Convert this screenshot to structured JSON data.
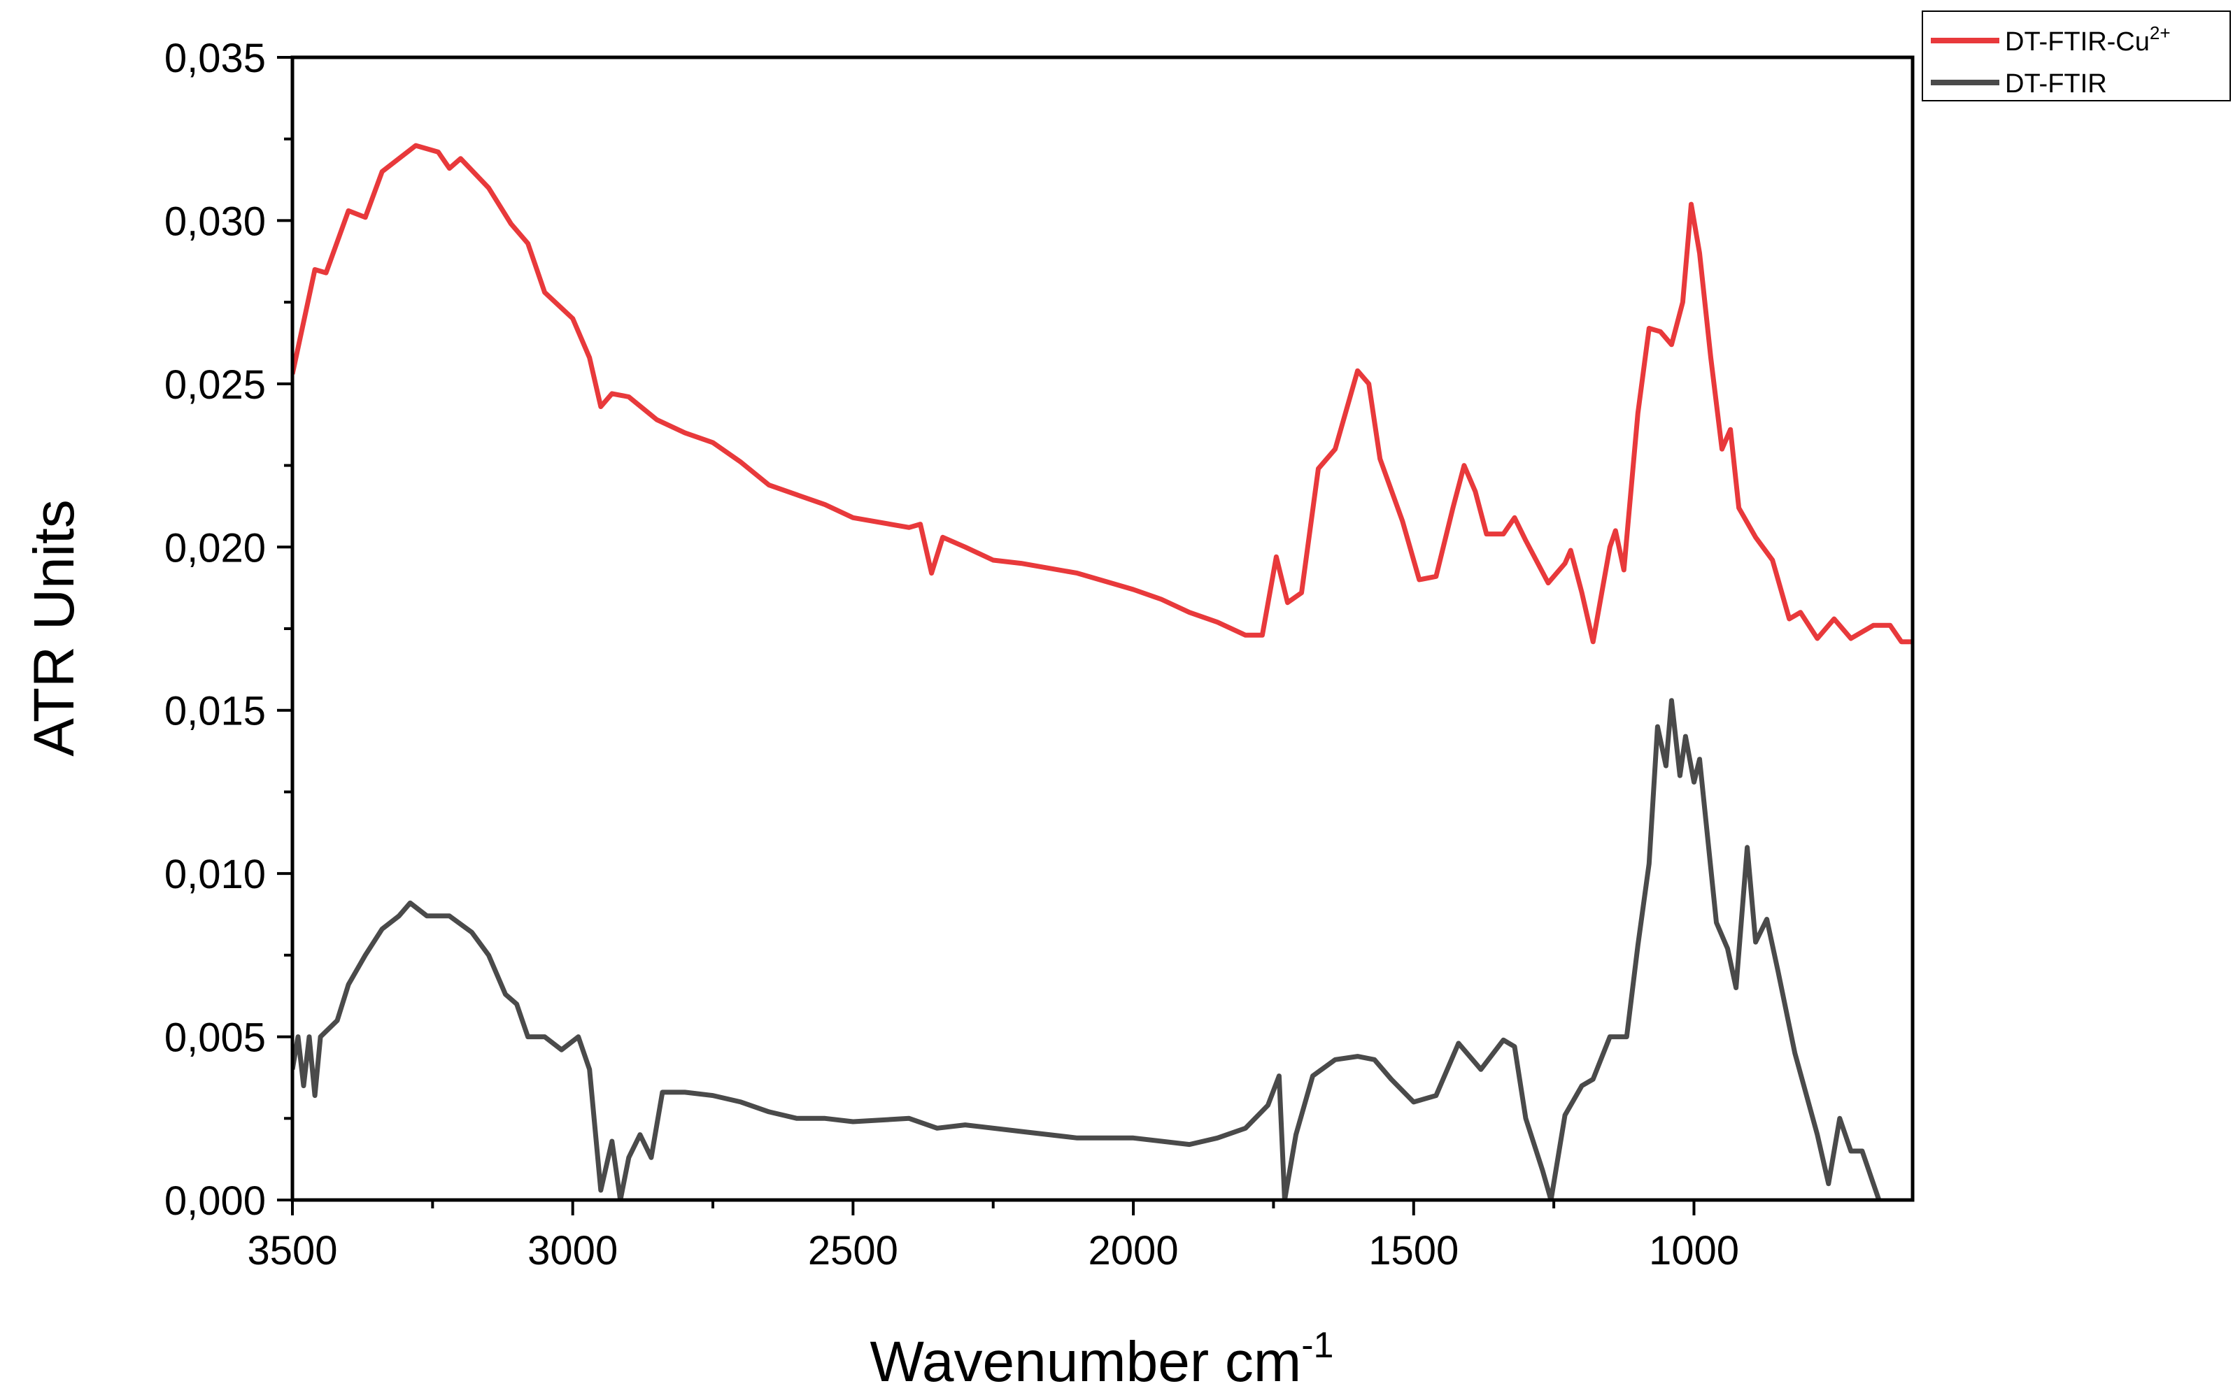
{
  "chart_data": {
    "type": "line",
    "x_label": "Wavenumber cm",
    "x_label_sup": "-1",
    "y_label": "ATR Units",
    "xlim": [
      3500,
      610
    ],
    "xticks": [
      3500,
      3000,
      2500,
      2000,
      1500,
      1000
    ],
    "ylim": [
      0,
      0.035
    ],
    "yticks": [
      {
        "value": 0,
        "label": "0,000"
      },
      {
        "value": 0.005,
        "label": "0,005"
      },
      {
        "value": 0.01,
        "label": "0,010"
      },
      {
        "value": 0.015,
        "label": "0,015"
      },
      {
        "value": 0.02,
        "label": "0,020"
      },
      {
        "value": 0.025,
        "label": "0,025"
      },
      {
        "value": 0.03,
        "label": "0,030"
      },
      {
        "value": 0.035,
        "label": "0,035"
      }
    ],
    "legend": "upper right",
    "series": [
      {
        "name": "DT-FTIR-Cu",
        "name_sup": "2+",
        "color": "#e8393b",
        "x": [
          3500,
          3460,
          3440,
          3400,
          3370,
          3340,
          3280,
          3240,
          3220,
          3200,
          3150,
          3110,
          3080,
          3050,
          3000,
          2970,
          2950,
          2930,
          2900,
          2850,
          2800,
          2750,
          2700,
          2650,
          2600,
          2550,
          2500,
          2400,
          2380,
          2360,
          2340,
          2300,
          2250,
          2200,
          2100,
          2000,
          1950,
          1900,
          1850,
          1800,
          1770,
          1745,
          1725,
          1700,
          1670,
          1640,
          1600,
          1580,
          1560,
          1520,
          1490,
          1460,
          1430,
          1410,
          1390,
          1370,
          1340,
          1320,
          1300,
          1260,
          1230,
          1220,
          1200,
          1180,
          1150,
          1140,
          1125,
          1100,
          1080,
          1060,
          1040,
          1020,
          1005,
          990,
          970,
          950,
          935,
          920,
          890,
          860,
          830,
          810,
          780,
          750,
          720,
          680,
          650,
          630,
          610
        ],
        "values": [
          0.0253,
          0.0285,
          0.0284,
          0.0303,
          0.0301,
          0.0315,
          0.0323,
          0.0321,
          0.0316,
          0.0319,
          0.031,
          0.0299,
          0.0293,
          0.0278,
          0.027,
          0.0258,
          0.0243,
          0.0247,
          0.0246,
          0.0239,
          0.0235,
          0.0232,
          0.0226,
          0.0219,
          0.0216,
          0.0213,
          0.0209,
          0.0206,
          0.0207,
          0.0192,
          0.0203,
          0.02,
          0.0196,
          0.0195,
          0.0192,
          0.0187,
          0.0184,
          0.018,
          0.0177,
          0.0173,
          0.0173,
          0.0197,
          0.0183,
          0.0186,
          0.0224,
          0.023,
          0.0254,
          0.025,
          0.0227,
          0.0208,
          0.019,
          0.0191,
          0.0212,
          0.0225,
          0.0217,
          0.0204,
          0.0204,
          0.0209,
          0.0202,
          0.0189,
          0.0195,
          0.0199,
          0.0186,
          0.0171,
          0.02,
          0.0205,
          0.0193,
          0.0241,
          0.0267,
          0.0266,
          0.0262,
          0.0275,
          0.0305,
          0.029,
          0.0258,
          0.023,
          0.0236,
          0.0212,
          0.0203,
          0.0196,
          0.0178,
          0.018,
          0.0172,
          0.0178,
          0.0172,
          0.0176,
          0.0176,
          0.0171,
          0.0171
        ]
      },
      {
        "name": "DT-FTIR",
        "color": "#4a4a4a",
        "x": [
          3500,
          3490,
          3480,
          3470,
          3460,
          3450,
          3420,
          3400,
          3370,
          3340,
          3310,
          3290,
          3260,
          3220,
          3180,
          3150,
          3120,
          3100,
          3080,
          3050,
          3020,
          2990,
          2970,
          2950,
          2930,
          2915,
          2900,
          2880,
          2860,
          2840,
          2800,
          2750,
          2700,
          2650,
          2600,
          2550,
          2500,
          2400,
          2350,
          2300,
          2200,
          2100,
          2000,
          1900,
          1850,
          1800,
          1760,
          1740,
          1730,
          1710,
          1680,
          1640,
          1600,
          1570,
          1540,
          1500,
          1460,
          1420,
          1380,
          1340,
          1320,
          1300,
          1270,
          1255,
          1230,
          1200,
          1180,
          1150,
          1120,
          1100,
          1080,
          1065,
          1050,
          1040,
          1025,
          1015,
          1000,
          990,
          960,
          940,
          925,
          905,
          890,
          870,
          850,
          820,
          780,
          760,
          740,
          720,
          700,
          680,
          670
        ],
        "values": [
          0.004,
          0.005,
          0.0035,
          0.005,
          0.0032,
          0.005,
          0.0055,
          0.0066,
          0.0075,
          0.0083,
          0.0087,
          0.0091,
          0.0087,
          0.0087,
          0.0082,
          0.0075,
          0.0063,
          0.006,
          0.005,
          0.005,
          0.0046,
          0.005,
          0.004,
          0.0003,
          0.0018,
          0.0,
          0.0013,
          0.002,
          0.0013,
          0.0033,
          0.0033,
          0.0032,
          0.003,
          0.0027,
          0.0025,
          0.0025,
          0.0024,
          0.0025,
          0.0022,
          0.0023,
          0.0021,
          0.0019,
          0.0019,
          0.0017,
          0.0019,
          0.0022,
          0.0029,
          0.0038,
          0.0,
          0.002,
          0.0038,
          0.0043,
          0.0044,
          0.0043,
          0.0037,
          0.003,
          0.0032,
          0.0048,
          0.004,
          0.0049,
          0.0047,
          0.0025,
          0.0009,
          0.0,
          0.0026,
          0.0035,
          0.0037,
          0.005,
          0.005,
          0.0078,
          0.0103,
          0.0145,
          0.0133,
          0.0153,
          0.013,
          0.0142,
          0.0128,
          0.0135,
          0.0085,
          0.0077,
          0.0065,
          0.0108,
          0.0079,
          0.0086,
          0.007,
          0.0045,
          0.002,
          0.0005,
          0.0025,
          0.0015,
          0.0015,
          0.0005,
          0.0
        ]
      }
    ]
  }
}
